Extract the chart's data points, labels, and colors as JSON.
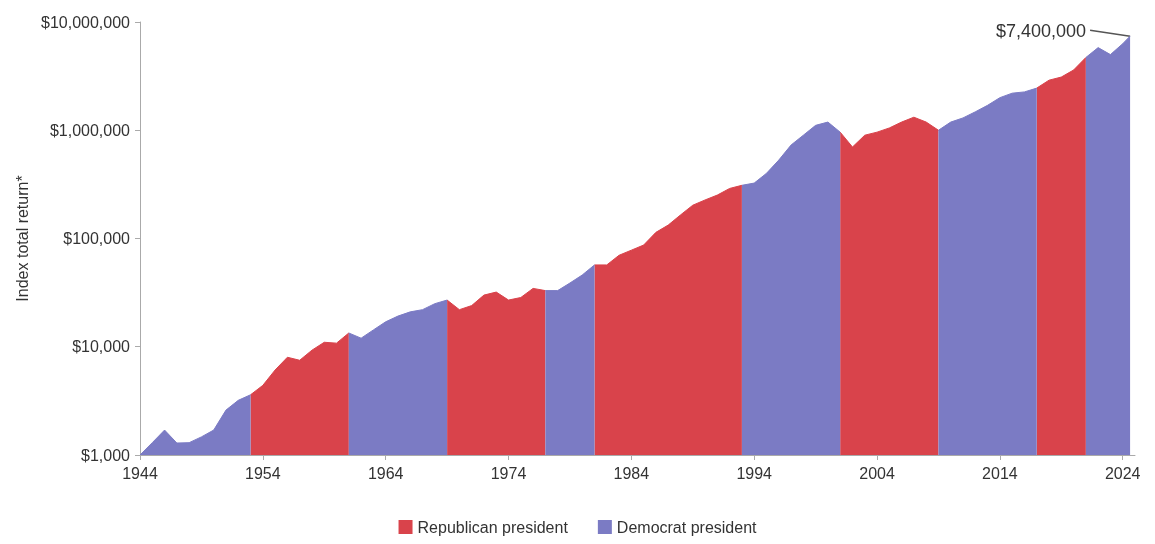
{
  "chart_data": {
    "type": "area",
    "ylabel": "Index total return*",
    "log": true,
    "legend": "bottom",
    "grid": false,
    "x": [
      1944,
      1945,
      1946,
      1947,
      1948,
      1949,
      1950,
      1951,
      1952,
      1953,
      1954,
      1955,
      1956,
      1957,
      1958,
      1959,
      1960,
      1961,
      1962,
      1963,
      1964,
      1965,
      1966,
      1967,
      1968,
      1969,
      1970,
      1971,
      1972,
      1973,
      1974,
      1975,
      1976,
      1977,
      1978,
      1979,
      1980,
      1981,
      1982,
      1983,
      1984,
      1985,
      1986,
      1987,
      1988,
      1989,
      1990,
      1991,
      1992,
      1993,
      1994,
      1995,
      1996,
      1997,
      1998,
      1999,
      2000,
      2001,
      2002,
      2003,
      2004,
      2005,
      2006,
      2007,
      2008,
      2009,
      2010,
      2011,
      2012,
      2013,
      2014,
      2015,
      2016,
      2017,
      2018,
      2019,
      2020,
      2021,
      2022,
      2023,
      2024,
      2024.6
    ],
    "series": [
      {
        "name": "Republican president",
        "color": "#d9434b",
        "values": [
          null,
          null,
          null,
          null,
          null,
          null,
          null,
          null,
          null,
          3600,
          4400,
          6100,
          8000,
          7500,
          9300,
          11000,
          10800,
          13400,
          null,
          null,
          null,
          null,
          null,
          null,
          null,
          27000,
          22000,
          24000,
          30000,
          32000,
          27000,
          28500,
          34600,
          33000,
          null,
          null,
          null,
          57000,
          57000,
          70000,
          78000,
          87000,
          114000,
          133000,
          165000,
          203000,
          227000,
          252000,
          290000,
          310000,
          null,
          null,
          null,
          null,
          null,
          null,
          null,
          960000,
          700000,
          900000,
          960000,
          1050000,
          1190000,
          1320000,
          1190000,
          1000000,
          null,
          null,
          null,
          null,
          null,
          null,
          null,
          2450000,
          2900000,
          3100000,
          3600000,
          4700000,
          null,
          null,
          null,
          null
        ]
      },
      {
        "name": "Democrat president",
        "color": "#7b7bc4",
        "values": [
          1000,
          1300,
          1700,
          1290,
          1300,
          1470,
          1700,
          2600,
          3200,
          3600,
          null,
          null,
          null,
          null,
          null,
          null,
          null,
          13400,
          12000,
          14300,
          17000,
          19200,
          21000,
          22000,
          25000,
          27000,
          null,
          null,
          null,
          null,
          null,
          null,
          null,
          33000,
          33000,
          38800,
          46000,
          57000,
          null,
          null,
          null,
          null,
          null,
          null,
          null,
          null,
          null,
          null,
          null,
          310000,
          325000,
          400000,
          530000,
          730000,
          900000,
          1110000,
          1190000,
          960000,
          null,
          null,
          null,
          null,
          null,
          null,
          null,
          1000000,
          1190000,
          1300000,
          1480000,
          1700000,
          2000000,
          2200000,
          2260000,
          2450000,
          null,
          null,
          null,
          4700000,
          5800000,
          5000000,
          6300000,
          7400000
        ]
      }
    ],
    "xlim": [
      1944,
      2025
    ],
    "xticks": [
      1944,
      1954,
      1964,
      1974,
      1984,
      1994,
      2004,
      2014,
      2024
    ],
    "ylim": [
      1000,
      10000000
    ],
    "yticks": [
      {
        "value": 1000,
        "label": "$1,000"
      },
      {
        "value": 10000,
        "label": "$10,000"
      },
      {
        "value": 100000,
        "label": "$100,000"
      },
      {
        "value": 1000000,
        "label": "$1,000,000"
      },
      {
        "value": 10000000,
        "label": "$10,000,000"
      }
    ],
    "annotations": [
      {
        "text": "$7,400,000",
        "x": 2024.6,
        "y": 7400000
      }
    ]
  }
}
